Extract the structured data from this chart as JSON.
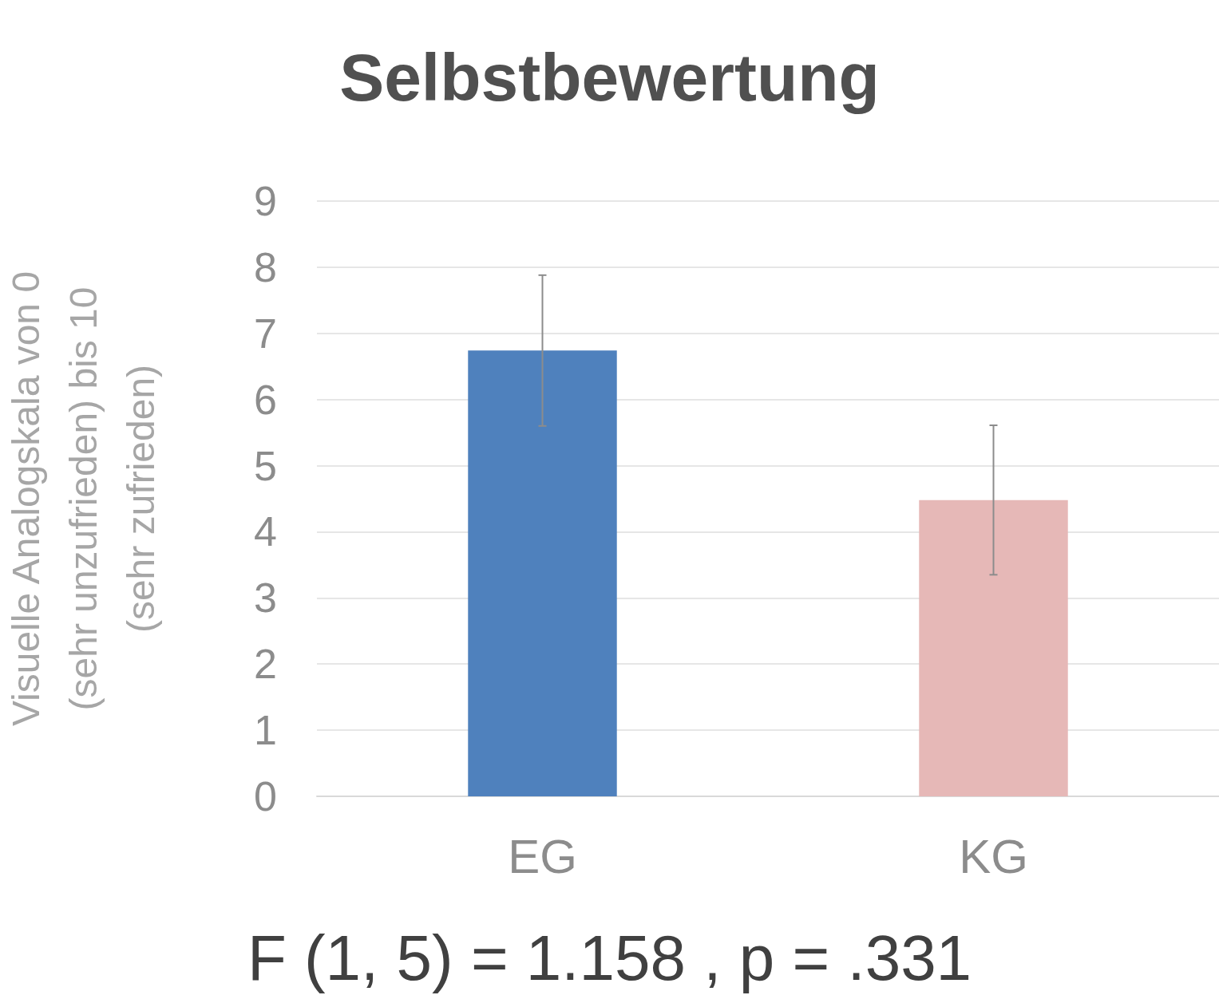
{
  "chart_data": {
    "type": "bar",
    "title": "Selbstbewertung",
    "ylabel": "Visuelle Analogskala von 0 (sehr unzufrieden) bis 10 (sehr zufrieden)",
    "categories": [
      "EG",
      "KG"
    ],
    "values": [
      6.74,
      4.48
    ],
    "colors": [
      "#4f81bd",
      "#e6b8b7"
    ],
    "errors": [
      1.14,
      1.13
    ],
    "ylim": [
      0,
      9
    ],
    "yticks": [
      0,
      1,
      2,
      3,
      4,
      5,
      6,
      7,
      8,
      9
    ],
    "grid": "y",
    "annotations": [
      "F (1, 5) = 1.158 , p = .331"
    ]
  }
}
